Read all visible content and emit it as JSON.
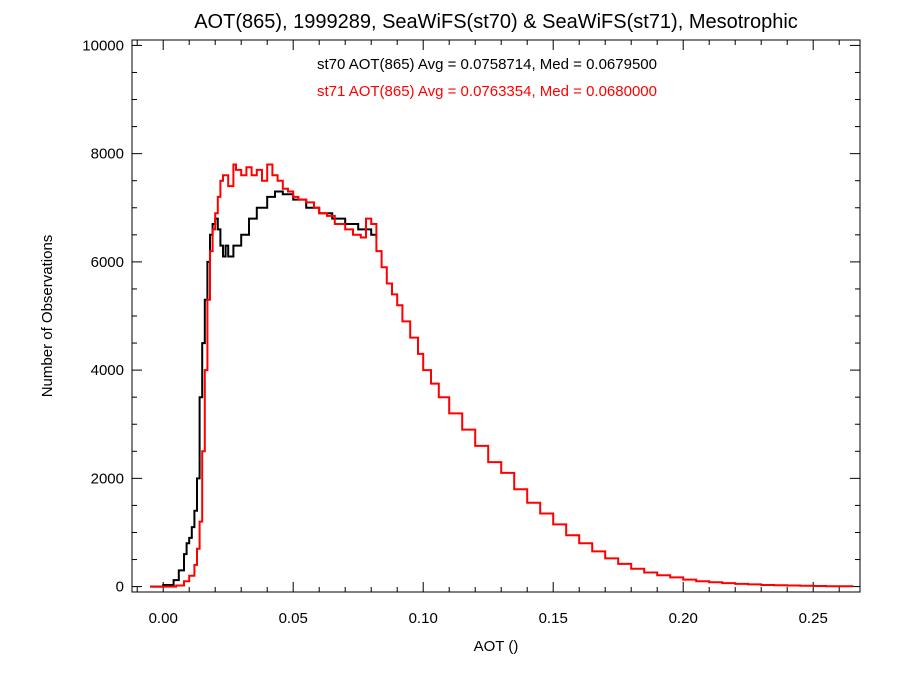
{
  "chart_data": {
    "type": "line",
    "step": true,
    "title": "AOT(865), 1999289, SeaWiFS(st70) & SeaWiFS(st71), Mesotrophic",
    "xlabel": "AOT ()",
    "ylabel": "Number of Observations",
    "xlim": [
      -0.012,
      0.268
    ],
    "ylim": [
      -100,
      10100
    ],
    "xticks": [
      0.0,
      0.05,
      0.1,
      0.15,
      0.2,
      0.25
    ],
    "xtick_labels": [
      "0.00",
      "0.05",
      "0.10",
      "0.15",
      "0.20",
      "0.25"
    ],
    "yticks": [
      0,
      2000,
      4000,
      6000,
      8000,
      10000
    ],
    "ytick_labels": [
      "0",
      "2000",
      "4000",
      "6000",
      "8000",
      "10000"
    ],
    "annotations": [
      {
        "text": "st70 AOT(865) Avg = 0.0758714, Med = 0.0679500",
        "color": "#000000"
      },
      {
        "text": "st71 AOT(865) Avg = 0.0763354, Med = 0.0680000",
        "color": "#ff0000"
      }
    ],
    "series": [
      {
        "color": "#000000",
        "x": [
          -0.005,
          0.0,
          0.004,
          0.006,
          0.008,
          0.009,
          0.01,
          0.011,
          0.012,
          0.013,
          0.014,
          0.015,
          0.016,
          0.017,
          0.018,
          0.019,
          0.02,
          0.021,
          0.022,
          0.023,
          0.024,
          0.025,
          0.027,
          0.03,
          0.033,
          0.036,
          0.04,
          0.043,
          0.046,
          0.05,
          0.055,
          0.06,
          0.065,
          0.07,
          0.075,
          0.08,
          0.082
        ],
        "y": [
          0,
          30,
          120,
          300,
          600,
          800,
          900,
          1100,
          1400,
          2000,
          3500,
          4500,
          5300,
          6000,
          6500,
          6700,
          6800,
          6600,
          6300,
          6100,
          6300,
          6100,
          6300,
          6500,
          6800,
          7000,
          7200,
          7300,
          7250,
          7150,
          7000,
          6900,
          6800,
          6700,
          6600,
          6500,
          6450
        ]
      },
      {
        "color": "#ff0000",
        "x": [
          -0.005,
          0.005,
          0.008,
          0.01,
          0.012,
          0.013,
          0.014,
          0.015,
          0.016,
          0.017,
          0.018,
          0.019,
          0.02,
          0.021,
          0.022,
          0.023,
          0.025,
          0.027,
          0.028,
          0.03,
          0.032,
          0.034,
          0.036,
          0.038,
          0.04,
          0.042,
          0.044,
          0.046,
          0.048,
          0.05,
          0.052,
          0.055,
          0.058,
          0.06,
          0.063,
          0.066,
          0.07,
          0.073,
          0.076,
          0.078,
          0.08,
          0.082,
          0.084,
          0.086,
          0.088,
          0.09,
          0.092,
          0.095,
          0.098,
          0.1,
          0.103,
          0.106,
          0.11,
          0.115,
          0.12,
          0.125,
          0.13,
          0.135,
          0.14,
          0.145,
          0.15,
          0.155,
          0.16,
          0.165,
          0.17,
          0.175,
          0.18,
          0.185,
          0.19,
          0.195,
          0.2,
          0.205,
          0.21,
          0.215,
          0.22,
          0.225,
          0.23,
          0.235,
          0.24,
          0.245,
          0.25,
          0.255,
          0.26,
          0.265
        ],
        "y": [
          0,
          20,
          100,
          200,
          400,
          700,
          1200,
          2500,
          4000,
          5300,
          6200,
          6600,
          6900,
          7200,
          7500,
          7600,
          7400,
          7800,
          7700,
          7600,
          7750,
          7600,
          7700,
          7500,
          7800,
          7600,
          7500,
          7350,
          7300,
          7200,
          7150,
          7100,
          7000,
          6900,
          6850,
          6700,
          6600,
          6500,
          6450,
          6800,
          6700,
          6200,
          5900,
          5600,
          5400,
          5200,
          4900,
          4600,
          4300,
          4000,
          3750,
          3500,
          3200,
          2900,
          2600,
          2300,
          2100,
          1800,
          1550,
          1350,
          1150,
          950,
          800,
          650,
          520,
          420,
          330,
          260,
          210,
          170,
          130,
          100,
          80,
          65,
          50,
          40,
          30,
          25,
          20,
          15,
          10,
          8,
          5,
          3
        ]
      }
    ]
  }
}
